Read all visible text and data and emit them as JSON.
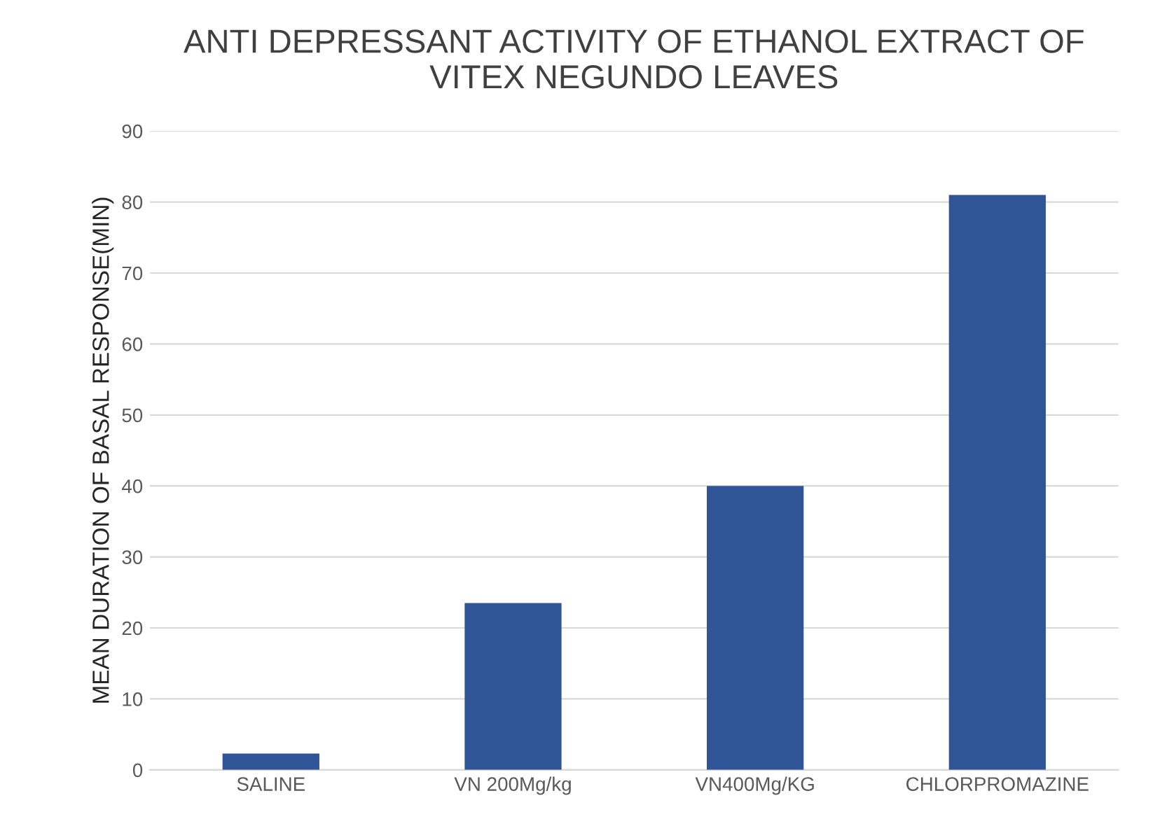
{
  "chart_data": {
    "type": "bar",
    "title": "ANTI DEPRESSANT ACTIVITY OF ETHANOL EXTRACT OF\nVITEX NEGUNDO LEAVES",
    "ylabel": "MEAN DURATION OF BASAL RESPONSE(MIN)",
    "categories": [
      "SALINE",
      "VN 200Mg/kg",
      "VN400Mg/KG",
      "CHLORPROMAZINE"
    ],
    "values": [
      2.3,
      23.5,
      40,
      81
    ],
    "color": "#2f5597",
    "ylim": [
      0,
      90
    ],
    "yticks": [
      0,
      10,
      20,
      30,
      40,
      50,
      60,
      70,
      80,
      90
    ],
    "grid": "y"
  }
}
